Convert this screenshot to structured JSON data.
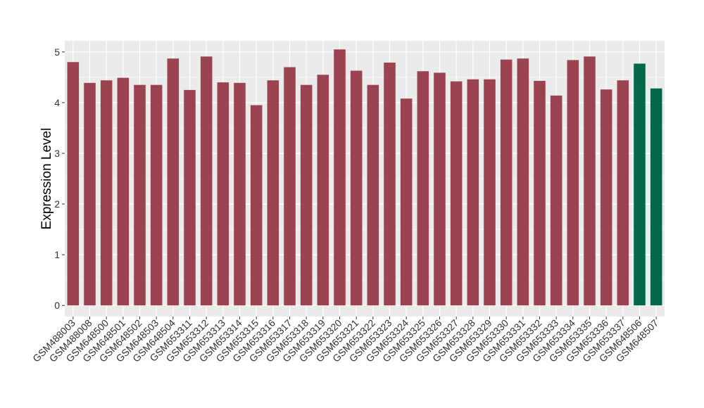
{
  "chart_data": {
    "type": "bar",
    "title": "",
    "xlabel": "",
    "ylabel": "Expression Level",
    "ylim": [
      -0.22,
      5.22
    ],
    "yticks": [
      0,
      1,
      2,
      3,
      4,
      5
    ],
    "grid": true,
    "legend": "none",
    "colors": {
      "default": "#9b4350",
      "highlight": "#03694a",
      "panel_bg": "#ebebeb",
      "grid": "#ffffff"
    },
    "categories": [
      "GSM488003",
      "GSM488008",
      "GSM648500",
      "GSM648501",
      "GSM648502",
      "GSM648503",
      "GSM648504",
      "GSM653311",
      "GSM653312",
      "GSM653313",
      "GSM653314",
      "GSM653315",
      "GSM653316",
      "GSM653317",
      "GSM653318",
      "GSM653319",
      "GSM653320",
      "GSM653321",
      "GSM653322",
      "GSM653323",
      "GSM653324",
      "GSM653325",
      "GSM653326",
      "GSM653327",
      "GSM653328",
      "GSM653329",
      "GSM653330",
      "GSM653331",
      "GSM653332",
      "GSM653333",
      "GSM653334",
      "GSM653335",
      "GSM653336",
      "GSM653337",
      "GSM648506",
      "GSM648507"
    ],
    "values": [
      4.8,
      4.39,
      4.44,
      4.49,
      4.35,
      4.35,
      4.87,
      4.25,
      4.91,
      4.4,
      4.39,
      3.95,
      4.44,
      4.7,
      4.35,
      4.55,
      5.05,
      4.63,
      4.35,
      4.79,
      4.08,
      4.62,
      4.59,
      4.42,
      4.46,
      4.46,
      4.85,
      4.87,
      4.43,
      4.14,
      4.84,
      4.91,
      4.26,
      4.44,
      4.77,
      4.28
    ],
    "highlight": [
      false,
      false,
      false,
      false,
      false,
      false,
      false,
      false,
      false,
      false,
      false,
      false,
      false,
      false,
      false,
      false,
      false,
      false,
      false,
      false,
      false,
      false,
      false,
      false,
      false,
      false,
      false,
      false,
      false,
      false,
      false,
      false,
      false,
      false,
      true,
      true
    ]
  }
}
